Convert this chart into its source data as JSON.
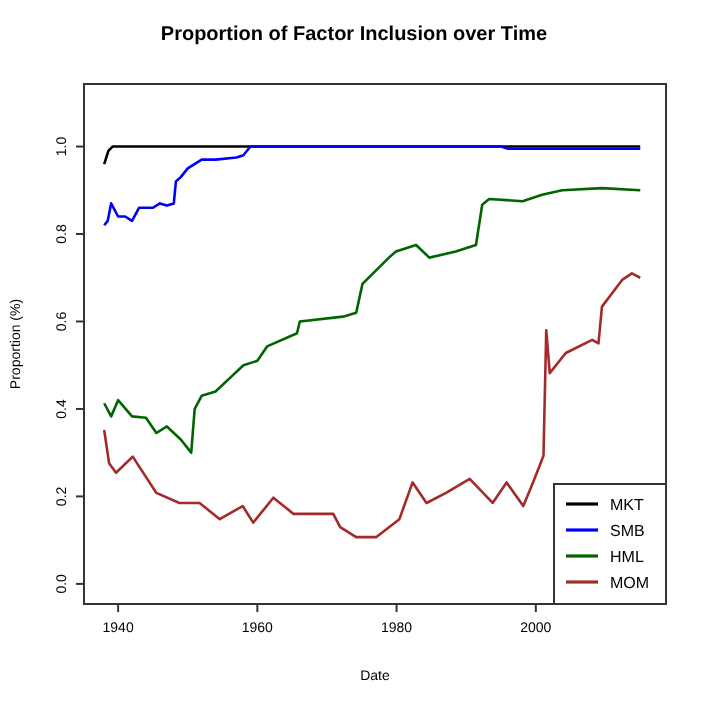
{
  "chart_data": {
    "type": "line",
    "title": "Proportion of Factor Inclusion over Time",
    "xlabel": "Date",
    "ylabel": "Proportion (%)",
    "xlim": [
      1935.1,
      2018.7
    ],
    "ylim": [
      -0.046,
      1.143
    ],
    "xticks": [
      1940,
      1960,
      1980,
      2000
    ],
    "yticks": [
      {
        "value": 0,
        "label": "0.0"
      },
      0.2,
      0.4,
      0.6,
      0.8,
      {
        "value": 1,
        "label": "1.0"
      }
    ],
    "grid": false,
    "legend": "bottom right",
    "line_style": "solid",
    "series": [
      {
        "name": "MKT",
        "color": "#000000",
        "x": [
          1938,
          1938.6,
          1939.2,
          1950,
          1980,
          2000,
          2015
        ],
        "values": [
          0.96,
          0.99,
          1.0,
          1.0,
          1.0,
          1.0,
          1.0
        ]
      },
      {
        "name": "SMB",
        "color": "#0000ff",
        "x": [
          1938,
          1938.5,
          1939,
          1940,
          1941,
          1942,
          1943,
          1945,
          1946,
          1947,
          1948,
          1948.3,
          1949,
          1950,
          1952,
          1954,
          1957,
          1958,
          1959,
          1995,
          1996,
          2000,
          2015
        ],
        "values": [
          0.82,
          0.83,
          0.87,
          0.84,
          0.84,
          0.83,
          0.86,
          0.86,
          0.87,
          0.865,
          0.87,
          0.92,
          0.93,
          0.95,
          0.97,
          0.97,
          0.975,
          0.98,
          1.0,
          1.0,
          0.995,
          0.995,
          0.995
        ]
      },
      {
        "name": "HML",
        "color": "#006400",
        "x": [
          1938,
          1939,
          1940,
          1942,
          1944,
          1945.5,
          1947,
          1949,
          1950.5,
          1951,
          1952,
          1954,
          1956,
          1958,
          1960,
          1961.4,
          1965.7,
          1966.1,
          1972.3,
          1974.2,
          1975.1,
          1978.9,
          1979.9,
          1982.8,
          1984.7,
          1988.5,
          1991.4,
          1992.3,
          1993.3,
          1998.1,
          2000.9,
          2003.8,
          2009.5,
          2015
        ],
        "values": [
          0.413,
          0.383,
          0.42,
          0.383,
          0.38,
          0.345,
          0.36,
          0.33,
          0.3,
          0.4,
          0.43,
          0.44,
          0.47,
          0.5,
          0.51,
          0.543,
          0.573,
          0.6,
          0.611,
          0.62,
          0.686,
          0.746,
          0.76,
          0.775,
          0.746,
          0.76,
          0.775,
          0.867,
          0.88,
          0.875,
          0.89,
          0.9,
          0.905,
          0.9
        ]
      },
      {
        "name": "MOM",
        "color": "#a52a2a",
        "x": [
          1938,
          1938.7,
          1939.7,
          1942.1,
          1945.5,
          1948.8,
          1951.7,
          1954.6,
          1957.9,
          1959.4,
          1962.3,
          1965.2,
          1969,
          1970.9,
          1971.9,
          1974.2,
          1977.1,
          1980.4,
          1982.3,
          1984.3,
          1987.1,
          1990.5,
          1993.8,
          1995.8,
          1998.2,
          1999.6,
          2001.1,
          2001.5,
          2002,
          2004.3,
          2008.1,
          2009,
          2009.5,
          2012.4,
          2013.8,
          2015
        ],
        "values": [
          0.352,
          0.276,
          0.254,
          0.291,
          0.208,
          0.185,
          0.185,
          0.148,
          0.178,
          0.14,
          0.197,
          0.16,
          0.16,
          0.16,
          0.13,
          0.107,
          0.107,
          0.148,
          0.232,
          0.185,
          0.208,
          0.24,
          0.185,
          0.232,
          0.178,
          0.232,
          0.293,
          0.58,
          0.482,
          0.528,
          0.558,
          0.55,
          0.634,
          0.695,
          0.71,
          0.7
        ]
      }
    ]
  }
}
